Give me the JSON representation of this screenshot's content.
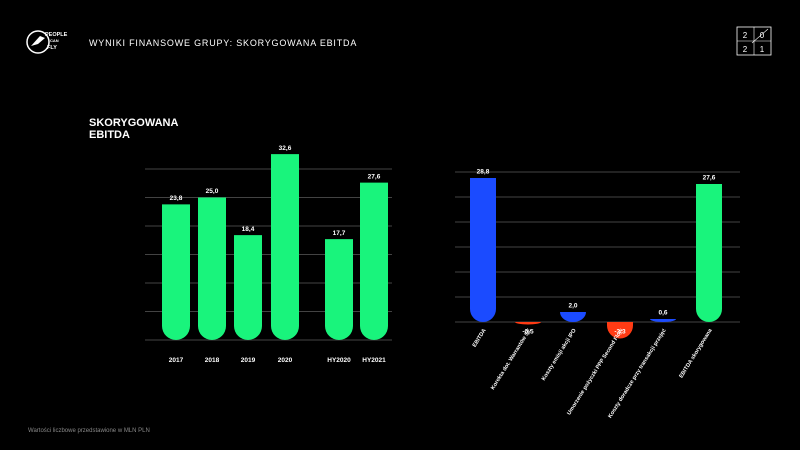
{
  "header": {
    "title": "WYNIKI FINANSOWE GRUPY: SKORYGOWANA EBITDA",
    "logo": [
      "PEOPLE",
      "CAN",
      "FLY"
    ]
  },
  "year_badge": [
    "2",
    "0",
    "2",
    "1"
  ],
  "section_title": [
    "SKORYGOWANA",
    "EBITDA"
  ],
  "footnote": "Wartości liczbowe przedstawione w MLN PLN",
  "chart_data": [
    {
      "type": "bar",
      "categories": [
        "2017",
        "2018",
        "2019",
        "2020",
        "HY2020",
        "HY2021"
      ],
      "values": [
        23.8,
        25.0,
        18.4,
        32.6,
        17.7,
        27.6
      ],
      "value_labels": [
        "23,8",
        "25,0",
        "18,4",
        "32,6",
        "17,7",
        "27,6"
      ],
      "color": "#19f47c",
      "ylim": [
        0,
        30
      ],
      "yticks": [
        0,
        5,
        10,
        15,
        20,
        25,
        30
      ],
      "grid": true
    },
    {
      "type": "bar",
      "categories": [
        "EBITDA",
        "Korekta dot. Warrantów SE",
        "Koszty emisji akcji IPO",
        "Umorzenie pożyczki PPP Second Flow",
        "Koszty doradcze przy transakcji przejęć",
        "EBITDA skorygowana"
      ],
      "values": [
        28.8,
        -0.5,
        2.0,
        -3.3,
        0.6,
        27.6
      ],
      "value_labels": [
        "28,8",
        "-0,5",
        "2,0",
        "-3,3",
        "0,6",
        "27,6"
      ],
      "colors": [
        "#1b4bff",
        "#ff3b14",
        "#1b4bff",
        "#ff3b14",
        "#1b4bff",
        "#19f47c"
      ],
      "ylim": [
        0,
        30
      ],
      "yticks": [
        0,
        5,
        10,
        15,
        20,
        25,
        30
      ],
      "grid": true
    }
  ]
}
